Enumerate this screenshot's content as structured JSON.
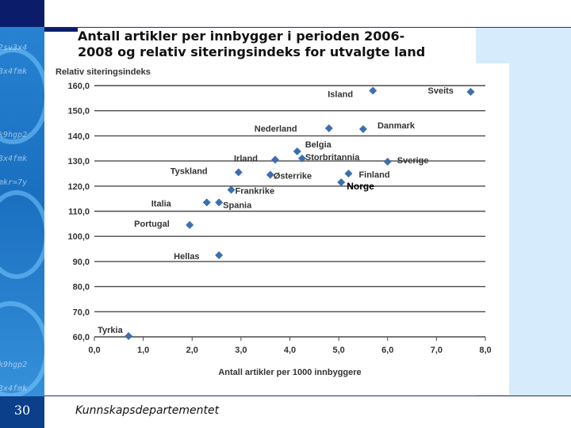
{
  "slide": {
    "title_line1": "Antall artikler per innbygger i perioden 2006-",
    "title_line2": "2008 og relativ siteringsindeks for utvalgte land",
    "footer": "Kunnskapsdepartementet",
    "slide_number": "30"
  },
  "colors": {
    "marker": "#3d6fb0",
    "grid": "#4a4a4a",
    "navy": "#0b1d6a",
    "panel_blue": "#d6ebfb"
  },
  "chart_data": {
    "type": "scatter",
    "title": "Antall artikler per innbygger i perioden 2006-2008 og relativ siteringsindeks for utvalgte land",
    "xlabel": "Antall artikler per 1000 innbyggere",
    "ylabel": "Relativ siteringsindeks",
    "xlim": [
      0,
      8
    ],
    "ylim": [
      60,
      160
    ],
    "xticks": [
      "0,0",
      "1,0",
      "2,0",
      "3,0",
      "4,0",
      "5,0",
      "6,0",
      "7,0",
      "8,0"
    ],
    "yticks": [
      "160,0",
      "150,0",
      "140,0",
      "130,0",
      "120,0",
      "110,0",
      "100,0",
      "90,0",
      "80,0",
      "70,0",
      "60,0"
    ],
    "grid": "horizontal",
    "points": [
      {
        "label": "Island",
        "x": 5.7,
        "y": 158.0
      },
      {
        "label": "Sveits",
        "x": 7.7,
        "y": 157.5
      },
      {
        "label": "Nederland",
        "x": 4.8,
        "y": 143.0
      },
      {
        "label": "Danmark",
        "x": 5.5,
        "y": 142.7
      },
      {
        "label": "Belgia",
        "x": 4.15,
        "y": 133.8
      },
      {
        "label": "Storbritannia",
        "x": 4.25,
        "y": 131.0
      },
      {
        "label": "Irland",
        "x": 3.7,
        "y": 130.5
      },
      {
        "label": "Sverige",
        "x": 6.0,
        "y": 129.7
      },
      {
        "label": "Tyskland",
        "x": 2.95,
        "y": 125.5
      },
      {
        "label": "Østerrike",
        "x": 3.6,
        "y": 124.5
      },
      {
        "label": "Finland",
        "x": 5.2,
        "y": 125.0
      },
      {
        "label": "Norge",
        "x": 5.05,
        "y": 121.5
      },
      {
        "label": "Frankrike",
        "x": 2.8,
        "y": 118.5
      },
      {
        "label": "Italia",
        "x": 2.3,
        "y": 113.5
      },
      {
        "label": "Spania",
        "x": 2.55,
        "y": 113.5
      },
      {
        "label": "Portugal",
        "x": 1.95,
        "y": 104.5
      },
      {
        "label": "Hellas",
        "x": 2.55,
        "y": 92.5
      },
      {
        "label": "Tyrkia",
        "x": 0.7,
        "y": 60.3
      }
    ]
  }
}
